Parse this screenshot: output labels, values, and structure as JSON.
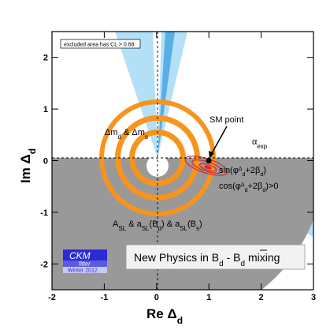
{
  "chart_data": {
    "type": "scatter",
    "xlabel": "Re Δd",
    "ylabel": "Im Δd",
    "xlim": [
      -2,
      3
    ],
    "ylim": [
      -2.5,
      2.5
    ],
    "x_ticks": [
      -2,
      -1,
      0,
      1,
      2,
      3
    ],
    "y_ticks": [
      -2,
      -1,
      0,
      1,
      2
    ],
    "grid": false,
    "note": "excluded area has CL > 0.68",
    "sm_point": {
      "label": "SM point",
      "x": 1,
      "y": 0
    },
    "regions": [
      {
        "label_parts": [
          "Δm",
          "d",
          " & Δm",
          "s"
        ],
        "color": "#f7941d",
        "shape": "annuli",
        "center": [
          0,
          0
        ],
        "radii": [
          [
            1.12,
            1.02
          ],
          [
            0.81,
            0.71
          ],
          [
            0.54,
            0.44
          ]
        ]
      },
      {
        "label_parts": [
          "A",
          "SL",
          " & a",
          "SL",
          "(B",
          "d",
          ") & a",
          "SL",
          "(B",
          "s",
          ")"
        ],
        "color": "#999999",
        "shape": "half-disk",
        "center": [
          0,
          0
        ],
        "radius": 3.2
      },
      {
        "label_parts": [
          "α",
          "exp"
        ],
        "color": "#b3e0f7",
        "shape": "wedges"
      },
      {
        "label_parts": [
          "sin(φ",
          "Δ",
          "d",
          "+2β",
          "d",
          ")"
        ],
        "color": "#5aaee6",
        "shape": "band"
      },
      {
        "label_parts": [
          "cos(φ",
          "Δ",
          "d",
          "+2β",
          "d",
          ")>0"
        ],
        "color": "#5aaee6",
        "shape": "band"
      },
      {
        "label": "combined fit",
        "color": "#e52222",
        "shape": "contours",
        "center": [
          1.0,
          -0.15
        ]
      }
    ],
    "title_parts": [
      "New Physics in B",
      "d",
      " - ",
      "B",
      "d",
      " mixing"
    ],
    "logo": {
      "name": "CKM",
      "sub": "fitter",
      "date": "Winter 2012"
    }
  }
}
